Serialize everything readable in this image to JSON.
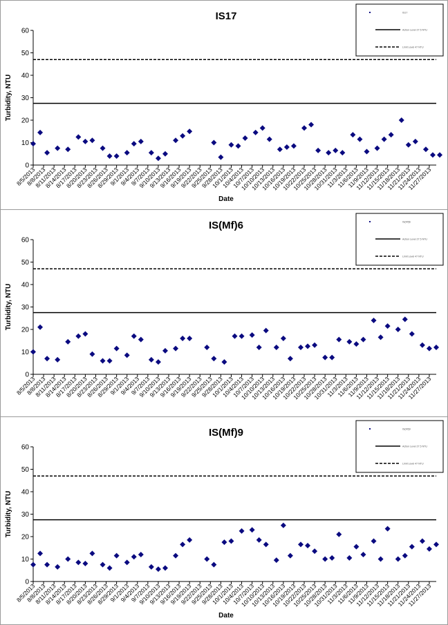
{
  "chart_data": [
    {
      "type": "scatter",
      "title": "IS17",
      "xlabel": "Date",
      "ylabel": "Turbidity, NTU",
      "ylim": [
        0,
        60
      ],
      "yticks": [
        0,
        10,
        20,
        30,
        40,
        50,
        60
      ],
      "x_tick_labels": [
        "8/5/2013",
        "8/8/2013",
        "8/11/2013",
        "8/14/2013",
        "8/17/2013",
        "8/20/2013",
        "8/23/2013",
        "8/26/2013",
        "8/29/2013",
        "9/1/2013",
        "9/4/2013",
        "9/7/2013",
        "9/10/2013",
        "9/13/2013",
        "9/16/2013",
        "9/19/2013",
        "9/22/2013",
        "9/25/2013",
        "9/28/2013",
        "10/1/2013",
        "10/4/2013",
        "10/7/2013",
        "10/10/2013",
        "10/13/2013",
        "10/16/2013",
        "10/19/2013",
        "10/22/2013",
        "10/25/2013",
        "10/28/2013",
        "10/31/2013",
        "11/3/2013",
        "11/6/2013",
        "11/9/2013",
        "11/12/2013",
        "11/15/2013",
        "11/18/2013",
        "11/21/2013",
        "11/24/2013",
        "11/27/2013"
      ],
      "x_domain": [
        "2013-08-05",
        "2013-11-29"
      ],
      "marker_color": "#0a0a80",
      "legend_position": "top-right",
      "legend": [
        "IS17",
        "Action Level 27.5 NTU",
        "Limit Level 47 NTU"
      ],
      "reference_lines": [
        {
          "name": "Action Level 27.5 NTU",
          "value": 27.5,
          "style": "solid"
        },
        {
          "name": "Limit Level 47 NTU",
          "value": 47,
          "style": "dashed"
        }
      ],
      "points": [
        [
          "2013-08-05",
          9.5
        ],
        [
          "2013-08-07",
          14.5
        ],
        [
          "2013-08-09",
          5.5
        ],
        [
          "2013-08-12",
          7.5
        ],
        [
          "2013-08-15",
          7
        ],
        [
          "2013-08-18",
          12.5
        ],
        [
          "2013-08-20",
          10.5
        ],
        [
          "2013-08-22",
          11
        ],
        [
          "2013-08-25",
          7.5
        ],
        [
          "2013-08-27",
          4
        ],
        [
          "2013-08-29",
          4
        ],
        [
          "2013-09-01",
          5.5
        ],
        [
          "2013-09-03",
          9.5
        ],
        [
          "2013-09-05",
          10.5
        ],
        [
          "2013-09-08",
          5.5
        ],
        [
          "2013-09-10",
          3
        ],
        [
          "2013-09-12",
          5
        ],
        [
          "2013-09-15",
          11
        ],
        [
          "2013-09-17",
          13
        ],
        [
          "2013-09-19",
          15
        ],
        [
          "2013-09-26",
          10
        ],
        [
          "2013-09-28",
          3.5
        ],
        [
          "2013-10-01",
          9
        ],
        [
          "2013-10-03",
          8.5
        ],
        [
          "2013-10-05",
          12
        ],
        [
          "2013-10-08",
          14.5
        ],
        [
          "2013-10-10",
          16.5
        ],
        [
          "2013-10-12",
          11.5
        ],
        [
          "2013-10-15",
          7
        ],
        [
          "2013-10-17",
          8
        ],
        [
          "2013-10-19",
          8.5
        ],
        [
          "2013-10-22",
          16.5
        ],
        [
          "2013-10-24",
          18
        ],
        [
          "2013-10-26",
          6.5
        ],
        [
          "2013-10-29",
          5.5
        ],
        [
          "2013-10-31",
          6.5
        ],
        [
          "2013-11-02",
          5.5
        ],
        [
          "2013-11-05",
          13.5
        ],
        [
          "2013-11-07",
          11.5
        ],
        [
          "2013-11-09",
          6
        ],
        [
          "2013-11-12",
          7.5
        ],
        [
          "2013-11-14",
          11.5
        ],
        [
          "2013-11-16",
          13.5
        ],
        [
          "2013-11-19",
          20
        ],
        [
          "2013-11-21",
          9
        ],
        [
          "2013-11-23",
          10.5
        ],
        [
          "2013-11-26",
          7
        ],
        [
          "2013-11-28",
          4.5
        ],
        [
          "2013-11-30",
          4.5
        ]
      ]
    },
    {
      "type": "scatter",
      "title": "IS(Mf)6",
      "xlabel": "",
      "ylabel": "Turbidity, NTU",
      "ylim": [
        0,
        60
      ],
      "yticks": [
        0,
        10,
        20,
        30,
        40,
        50,
        60
      ],
      "x_tick_labels": [
        "8/5/2013",
        "8/8/2013",
        "8/11/2013",
        "8/14/2013",
        "8/17/2013",
        "8/20/2013",
        "8/23/2013",
        "8/26/2013",
        "8/29/2013",
        "9/1/2013",
        "9/4/2013",
        "9/7/2013",
        "9/10/2013",
        "9/13/2013",
        "9/16/2013",
        "9/19/2013",
        "9/22/2013",
        "9/25/2013",
        "9/28/2013",
        "10/1/2013",
        "10/4/2013",
        "10/7/2013",
        "10/10/2013",
        "10/13/2013",
        "10/16/2013",
        "10/19/2013",
        "10/22/2013",
        "10/25/2013",
        "10/28/2013",
        "10/31/2013",
        "11/3/2013",
        "11/6/2013",
        "11/9/2013",
        "11/12/2013",
        "11/15/2013",
        "11/18/2013",
        "11/21/2013",
        "11/24/2013",
        "11/27/2013"
      ],
      "x_domain": [
        "2013-08-05",
        "2013-11-29"
      ],
      "marker_color": "#0a0a80",
      "legend_position": "top-right",
      "legend": [
        "IS(Mf)6",
        "Action Level 27.5 NTU",
        "Limit Level 47 NTU"
      ],
      "reference_lines": [
        {
          "name": "Action Level 27.5 NTU",
          "value": 27.5,
          "style": "solid"
        },
        {
          "name": "Limit Level 47 NTU",
          "value": 47,
          "style": "dashed"
        }
      ],
      "points": [
        [
          "2013-08-05",
          10
        ],
        [
          "2013-08-07",
          21
        ],
        [
          "2013-08-09",
          7
        ],
        [
          "2013-08-12",
          6.5
        ],
        [
          "2013-08-15",
          14.5
        ],
        [
          "2013-08-18",
          17
        ],
        [
          "2013-08-20",
          18
        ],
        [
          "2013-08-22",
          9
        ],
        [
          "2013-08-25",
          6
        ],
        [
          "2013-08-27",
          6
        ],
        [
          "2013-08-29",
          11.5
        ],
        [
          "2013-09-01",
          8.5
        ],
        [
          "2013-09-03",
          17
        ],
        [
          "2013-09-05",
          15.5
        ],
        [
          "2013-09-08",
          6.5
        ],
        [
          "2013-09-10",
          5.5
        ],
        [
          "2013-09-12",
          10.5
        ],
        [
          "2013-09-15",
          11.5
        ],
        [
          "2013-09-17",
          16
        ],
        [
          "2013-09-19",
          16
        ],
        [
          "2013-09-24",
          12
        ],
        [
          "2013-09-26",
          7
        ],
        [
          "2013-09-29",
          5.5
        ],
        [
          "2013-10-02",
          17
        ],
        [
          "2013-10-04",
          17
        ],
        [
          "2013-10-07",
          17.5
        ],
        [
          "2013-10-09",
          12
        ],
        [
          "2013-10-11",
          19.5
        ],
        [
          "2013-10-14",
          12
        ],
        [
          "2013-10-16",
          16
        ],
        [
          "2013-10-18",
          7
        ],
        [
          "2013-10-21",
          12
        ],
        [
          "2013-10-23",
          12.5
        ],
        [
          "2013-10-25",
          13
        ],
        [
          "2013-10-28",
          7.5
        ],
        [
          "2013-10-30",
          7.5
        ],
        [
          "2013-11-01",
          15.5
        ],
        [
          "2013-11-04",
          14.5
        ],
        [
          "2013-11-06",
          13.5
        ],
        [
          "2013-11-08",
          15.5
        ],
        [
          "2013-11-11",
          24
        ],
        [
          "2013-11-13",
          16.5
        ],
        [
          "2013-11-15",
          21.5
        ],
        [
          "2013-11-18",
          20
        ],
        [
          "2013-11-20",
          24.5
        ],
        [
          "2013-11-22",
          18
        ],
        [
          "2013-11-25",
          13
        ],
        [
          "2013-11-27",
          11.5
        ],
        [
          "2013-11-29",
          12
        ]
      ]
    },
    {
      "type": "scatter",
      "title": "IS(Mf)9",
      "xlabel": "Date",
      "ylabel": "Turbidity, NTU",
      "ylim": [
        0,
        60
      ],
      "yticks": [
        0,
        10,
        20,
        30,
        40,
        50,
        60
      ],
      "x_tick_labels": [
        "8/5/2013",
        "8/8/2013",
        "8/11/2013",
        "8/14/2013",
        "8/17/2013",
        "8/20/2013",
        "8/23/2013",
        "8/26/2013",
        "8/29/2013",
        "9/1/2013",
        "9/4/2013",
        "9/7/2013",
        "9/10/2013",
        "9/13/2013",
        "9/16/2013",
        "9/19/2013",
        "9/22/2013",
        "9/25/2013",
        "9/28/2013",
        "10/1/2013",
        "10/4/2013",
        "10/7/2013",
        "10/10/2013",
        "10/13/2013",
        "10/16/2013",
        "10/19/2013",
        "10/22/2013",
        "10/25/2013",
        "10/28/2013",
        "10/31/2013",
        "11/3/2013",
        "11/6/2013",
        "11/9/2013",
        "11/12/2013",
        "11/15/2013",
        "11/18/2013",
        "11/21/2013",
        "11/24/2013",
        "11/27/2013"
      ],
      "x_domain": [
        "2013-08-05",
        "2013-11-29"
      ],
      "marker_color": "#0a0a80",
      "legend_position": "top-right",
      "legend": [
        "IS(Mf)9",
        "Action Level 27.5 NTU",
        "Limit Level 47 NTU"
      ],
      "reference_lines": [
        {
          "name": "Action Level 27.5 NTU",
          "value": 27.5,
          "style": "solid"
        },
        {
          "name": "Limit Level 47 NTU",
          "value": 47,
          "style": "dashed"
        }
      ],
      "points": [
        [
          "2013-08-05",
          7.5
        ],
        [
          "2013-08-07",
          12.5
        ],
        [
          "2013-08-09",
          7.5
        ],
        [
          "2013-08-12",
          6.5
        ],
        [
          "2013-08-15",
          10
        ],
        [
          "2013-08-18",
          8.5
        ],
        [
          "2013-08-20",
          8
        ],
        [
          "2013-08-22",
          12.5
        ],
        [
          "2013-08-25",
          7.5
        ],
        [
          "2013-08-27",
          6
        ],
        [
          "2013-08-29",
          11.5
        ],
        [
          "2013-09-01",
          8.5
        ],
        [
          "2013-09-03",
          11
        ],
        [
          "2013-09-05",
          12
        ],
        [
          "2013-09-08",
          6.5
        ],
        [
          "2013-09-10",
          5.5
        ],
        [
          "2013-09-12",
          6
        ],
        [
          "2013-09-15",
          11.5
        ],
        [
          "2013-09-17",
          16.5
        ],
        [
          "2013-09-19",
          18.5
        ],
        [
          "2013-09-24",
          10
        ],
        [
          "2013-09-26",
          7.5
        ],
        [
          "2013-09-29",
          17.5
        ],
        [
          "2013-10-01",
          18
        ],
        [
          "2013-10-04",
          22.5
        ],
        [
          "2013-10-07",
          23
        ],
        [
          "2013-10-09",
          18.5
        ],
        [
          "2013-10-11",
          16.5
        ],
        [
          "2013-10-14",
          9.5
        ],
        [
          "2013-10-16",
          25
        ],
        [
          "2013-10-18",
          11.5
        ],
        [
          "2013-10-21",
          16.5
        ],
        [
          "2013-10-23",
          16
        ],
        [
          "2013-10-25",
          13.5
        ],
        [
          "2013-10-28",
          10
        ],
        [
          "2013-10-30",
          10.5
        ],
        [
          "2013-11-01",
          21
        ],
        [
          "2013-11-04",
          10.5
        ],
        [
          "2013-11-06",
          15.5
        ],
        [
          "2013-11-08",
          12
        ],
        [
          "2013-11-11",
          18
        ],
        [
          "2013-11-13",
          10
        ],
        [
          "2013-11-15",
          23.5
        ],
        [
          "2013-11-18",
          10
        ],
        [
          "2013-11-20",
          11.5
        ],
        [
          "2013-11-22",
          15.5
        ],
        [
          "2013-11-25",
          18
        ],
        [
          "2013-11-27",
          14.5
        ],
        [
          "2013-11-29",
          16.5
        ]
      ]
    }
  ]
}
